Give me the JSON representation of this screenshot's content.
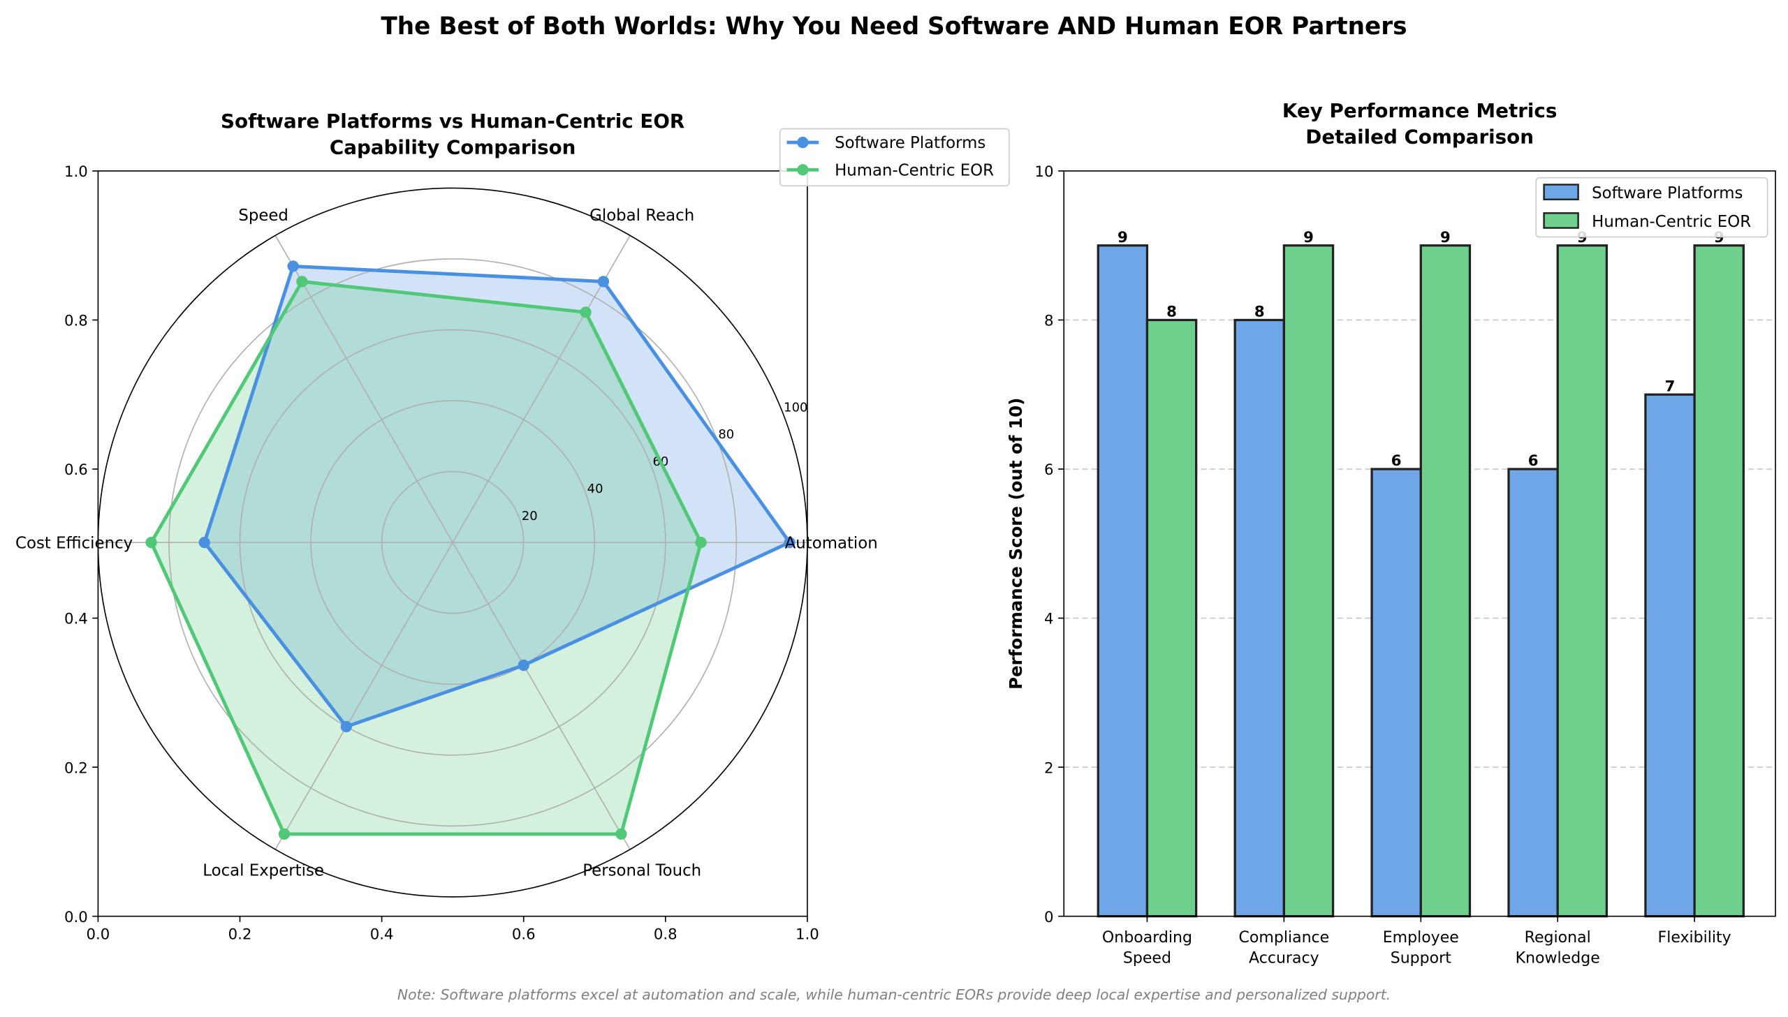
{
  "title": "The Best of Both Worlds: Why You Need Software AND Human EOR Partners",
  "note": "Note: Software platforms excel at automation and scale, while human-centric EORs provide deep local expertise and personalized support.",
  "colors": {
    "software": "#4a90e2",
    "human": "#50c878"
  },
  "chart_data": [
    {
      "type": "radar",
      "title_line1": "Software Platforms vs Human-Centric EOR",
      "title_line2": "Capability Comparison",
      "categories": [
        "Automation",
        "Global Reach",
        "Speed",
        "Cost Efficiency",
        "Local Expertise",
        "Personal Touch"
      ],
      "rlim": [
        0,
        100
      ],
      "r_ticks": [
        "20",
        "40",
        "60",
        "80",
        "100"
      ],
      "frame_x_ticks": [
        "0.0",
        "0.2",
        "0.4",
        "0.6",
        "0.8",
        "1.0"
      ],
      "frame_y_ticks": [
        "0.0",
        "0.2",
        "0.4",
        "0.6",
        "0.8",
        "1.0"
      ],
      "legend": "upper-right",
      "series": [
        {
          "name": "Software Platforms",
          "values": [
            95,
            85,
            90,
            70,
            60,
            40
          ]
        },
        {
          "name": "Human-Centric EOR",
          "values": [
            70,
            75,
            85,
            85,
            95,
            95
          ]
        }
      ]
    },
    {
      "type": "bar",
      "title_line1": "Key Performance Metrics",
      "title_line2": "Detailed Comparison",
      "categories": [
        [
          "Onboarding",
          "Speed"
        ],
        [
          "Compliance",
          "Accuracy"
        ],
        [
          "Employee",
          "Support"
        ],
        [
          "Regional",
          "Knowledge"
        ],
        [
          "Flexibility",
          ""
        ]
      ],
      "ylabel": "Performance Score (out of 10)",
      "ylim": [
        0,
        10
      ],
      "y_ticks": [
        "0",
        "2",
        "4",
        "6",
        "8",
        "10"
      ],
      "grid": "y-dashed",
      "legend": "upper-right",
      "series": [
        {
          "name": "Software Platforms",
          "values": [
            9,
            8,
            6,
            6,
            7
          ]
        },
        {
          "name": "Human-Centric EOR",
          "values": [
            8,
            9,
            9,
            9,
            9
          ]
        }
      ]
    }
  ]
}
